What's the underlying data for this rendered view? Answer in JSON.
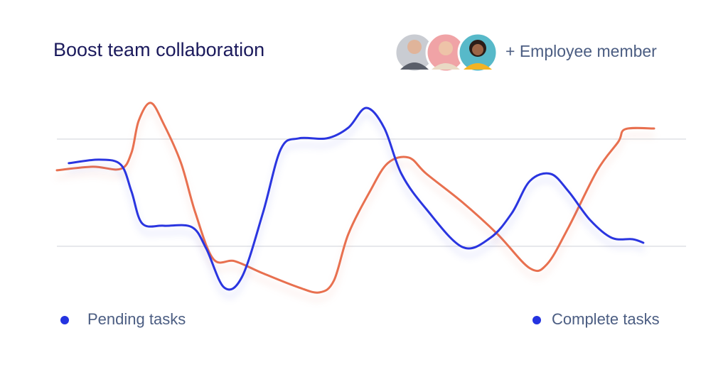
{
  "chart_data": {
    "type": "line",
    "title": "Boost team collaboration",
    "annotation": "+ Employee member",
    "xlim": [
      0,
      100
    ],
    "ylim": [
      -55,
      145
    ],
    "yticks": [
      0,
      100
    ],
    "grid": true,
    "legend_marker_color": "#2433e0",
    "series": [
      {
        "name": "Pending tasks",
        "color": "#2a35e0",
        "x": [
          2.0,
          7.1,
          10.7,
          12.5,
          14.3,
          17.9,
          22.6,
          25.0,
          28.0,
          31.0,
          34.5,
          37.5,
          40.5,
          45.2,
          48.8,
          51.8,
          54.8,
          57.7,
          61.9,
          67.9,
          72.6,
          76.2,
          79.2,
          82.7,
          85.7,
          89.3,
          92.9,
          96.4,
          98.2
        ],
        "values": [
          77.5,
          80.8,
          76.2,
          51,
          21.2,
          19.2,
          17.9,
          -2,
          -38.4,
          -28.5,
          31.1,
          90.7,
          100.7,
          100.7,
          110.6,
          129.1,
          110.6,
          67.5,
          34.4,
          -0.7,
          7.9,
          31.1,
          60.9,
          67.5,
          51,
          24.5,
          7.9,
          6.6,
          3.3
        ]
      },
      {
        "name": "Complete tasks",
        "color": "#e8704f",
        "x": [
          0,
          6.0,
          10.7,
          12.5,
          13.7,
          15.7,
          17.9,
          20.8,
          23.2,
          26.2,
          29.8,
          34.5,
          40.5,
          44.0,
          46.4,
          48.8,
          52.4,
          55.4,
          58.9,
          61.9,
          67.9,
          73.8,
          79.2,
          82.1,
          85.7,
          90.5,
          94.0,
          95.2,
          100
        ],
        "values": [
          70.9,
          74.2,
          72.2,
          87.4,
          117.2,
          133.8,
          113.9,
          77.5,
          31.1,
          -11.9,
          -13.9,
          -25.2,
          -38.4,
          -43,
          -31.8,
          11.3,
          51,
          77.5,
          82.8,
          67.5,
          41.1,
          11.3,
          -20.5,
          -16.6,
          17.9,
          70.9,
          97.4,
          109.3,
          109.9
        ]
      }
    ]
  }
}
